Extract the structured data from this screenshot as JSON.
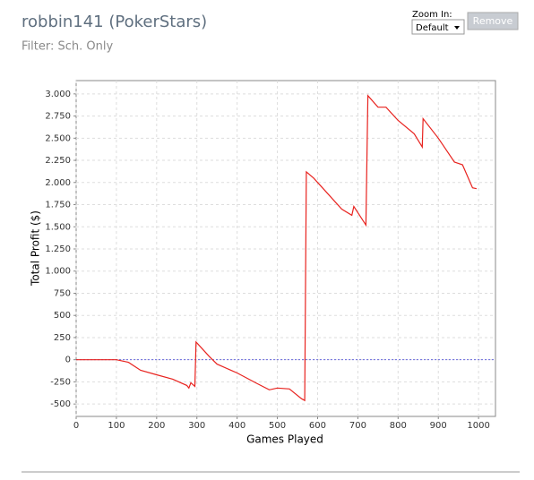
{
  "header": {
    "title": "robbin141 (PokerStars)",
    "filter": "Filter: Sch. Only"
  },
  "controls": {
    "zoom_label": "Zoom In:",
    "zoom_value": "Default",
    "remove_button": "Remove"
  },
  "chart_data": {
    "type": "line",
    "x_label": "Games Played",
    "y_label": "Total Profit ($)",
    "series": [
      {
        "name": "Total Profit",
        "color": "#e8231f",
        "x": [
          0,
          100,
          130,
          160,
          200,
          240,
          275,
          280,
          285,
          295,
          298,
          310,
          330,
          350,
          400,
          450,
          480,
          500,
          530,
          560,
          568,
          572,
          590,
          620,
          660,
          685,
          690,
          720,
          725,
          750,
          770,
          800,
          840,
          860,
          862,
          900,
          940,
          960,
          985,
          995
        ],
        "values": [
          0,
          0,
          -30,
          -120,
          -170,
          -220,
          -290,
          -320,
          -260,
          -300,
          200,
          140,
          40,
          -50,
          -150,
          -270,
          -340,
          -320,
          -330,
          -440,
          -460,
          2120,
          2050,
          1900,
          1700,
          1630,
          1730,
          1520,
          2980,
          2850,
          2850,
          2700,
          2550,
          2400,
          2720,
          2500,
          2230,
          2200,
          1940,
          1930
        ]
      }
    ],
    "xlim": [
      0,
      1042
    ],
    "ylim": [
      -640,
      3150
    ],
    "xticks": [
      0,
      100,
      200,
      300,
      400,
      500,
      600,
      700,
      800,
      900,
      1000
    ],
    "yticks": [
      -500,
      -250,
      0,
      250,
      500,
      750,
      {
        "value": 1000,
        "label": "1.000"
      },
      {
        "value": 1250,
        "label": "1.250"
      },
      {
        "value": 1500,
        "label": "1.500"
      },
      {
        "value": 1750,
        "label": "1.750"
      },
      {
        "value": 2000,
        "label": "2.000"
      },
      {
        "value": 2250,
        "label": "2.250"
      },
      {
        "value": 2500,
        "label": "2.500"
      },
      {
        "value": 2750,
        "label": "2.750"
      },
      {
        "value": 3000,
        "label": "3.000"
      }
    ],
    "grid": true,
    "zero_line_color": "#6a6adf"
  }
}
